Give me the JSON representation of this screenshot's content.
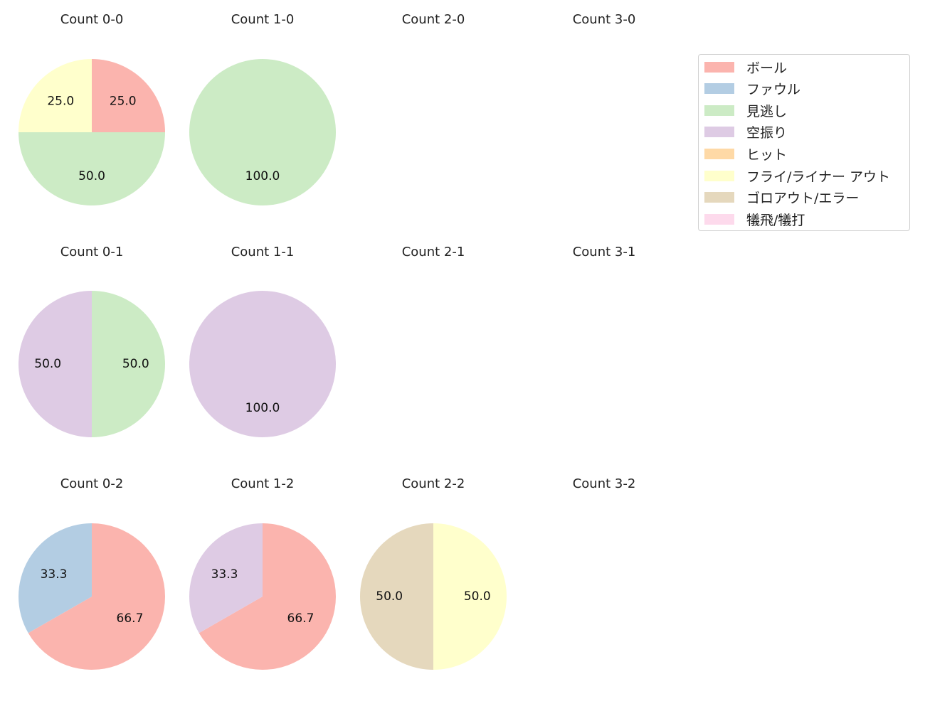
{
  "chart_data": {
    "type": "pie",
    "legend": {
      "position": "upper right",
      "entries": [
        {
          "label": "ボール",
          "color": "#fbb4ae"
        },
        {
          "label": "ファウル",
          "color": "#b3cde3"
        },
        {
          "label": "見逃し",
          "color": "#ccebc5"
        },
        {
          "label": "空振り",
          "color": "#decbe4"
        },
        {
          "label": "ヒット",
          "color": "#fed9a6"
        },
        {
          "label": "フライ/ライナー アウト",
          "color": "#ffffcc"
        },
        {
          "label": "ゴロアウト/エラー",
          "color": "#e5d8bd"
        },
        {
          "label": "犠飛/犠打",
          "color": "#fddaec"
        }
      ]
    },
    "charts": [
      {
        "title": "Count 0-0",
        "row": 0,
        "col": 0,
        "slices": [
          {
            "label": "ボール",
            "value": 25.0
          },
          {
            "label": "見逃し",
            "value": 50.0
          },
          {
            "label": "フライ/ライナー アウト",
            "value": 25.0
          }
        ]
      },
      {
        "title": "Count 1-0",
        "row": 0,
        "col": 1,
        "slices": [
          {
            "label": "見逃し",
            "value": 100.0
          }
        ]
      },
      {
        "title": "Count 2-0",
        "row": 0,
        "col": 2,
        "slices": []
      },
      {
        "title": "Count 3-0",
        "row": 0,
        "col": 3,
        "slices": []
      },
      {
        "title": "Count 0-1",
        "row": 1,
        "col": 0,
        "slices": [
          {
            "label": "見逃し",
            "value": 50.0
          },
          {
            "label": "空振り",
            "value": 50.0
          }
        ]
      },
      {
        "title": "Count 1-1",
        "row": 1,
        "col": 1,
        "slices": [
          {
            "label": "空振り",
            "value": 100.0
          }
        ]
      },
      {
        "title": "Count 2-1",
        "row": 1,
        "col": 2,
        "slices": []
      },
      {
        "title": "Count 3-1",
        "row": 1,
        "col": 3,
        "slices": []
      },
      {
        "title": "Count 0-2",
        "row": 2,
        "col": 0,
        "slices": [
          {
            "label": "ボール",
            "value": 66.7
          },
          {
            "label": "ファウル",
            "value": 33.3
          }
        ]
      },
      {
        "title": "Count 1-2",
        "row": 2,
        "col": 1,
        "slices": [
          {
            "label": "ボール",
            "value": 66.7
          },
          {
            "label": "空振り",
            "value": 33.3
          }
        ]
      },
      {
        "title": "Count 2-2",
        "row": 2,
        "col": 2,
        "slices": [
          {
            "label": "フライ/ライナー アウト",
            "value": 50.0
          },
          {
            "label": "ゴロアウト/エラー",
            "value": 50.0
          }
        ]
      },
      {
        "title": "Count 3-2",
        "row": 2,
        "col": 3,
        "slices": []
      }
    ],
    "start_angle": 90,
    "direction": "clockwise",
    "value_format": "%.1f"
  }
}
